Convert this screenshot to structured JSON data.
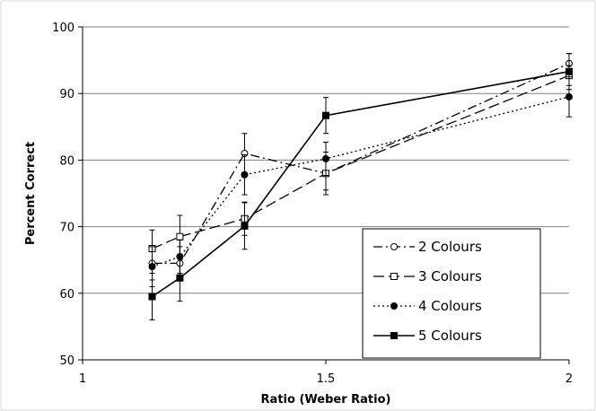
{
  "chart_data": {
    "type": "line",
    "title": "",
    "xlabel": "Ratio (Weber Ratio)",
    "ylabel": "Percent Correct",
    "xlim": [
      1,
      2
    ],
    "ylim": [
      50,
      100
    ],
    "x_ticks": [
      "1",
      "1.5",
      "2"
    ],
    "y_ticks": [
      "50",
      "60",
      "70",
      "80",
      "90",
      "100"
    ],
    "grid": "horizontal",
    "legend_position": "bottom-right",
    "series": [
      {
        "name": "2 Colours",
        "marker": "open-circle",
        "dash": "long-dash-dot",
        "points": [
          {
            "x": 1.143,
            "y": 64.5,
            "err": 2.5
          },
          {
            "x": 1.2,
            "y": 64.5,
            "err": 2.5
          },
          {
            "x": 1.333,
            "y": 81,
            "err": 3
          },
          {
            "x": 1.5,
            "y": 78,
            "err": 2.5
          },
          {
            "x": 2.0,
            "y": 94.5,
            "err": 1.5
          }
        ]
      },
      {
        "name": "3 Colours",
        "marker": "open-square",
        "dash": "long-dash",
        "points": [
          {
            "x": 1.143,
            "y": 66.7,
            "err": 2.8
          },
          {
            "x": 1.2,
            "y": 68.5,
            "err": 3.2
          },
          {
            "x": 1.333,
            "y": 71.2,
            "err": 2.5
          },
          {
            "x": 1.5,
            "y": 78,
            "err": 3.2
          },
          {
            "x": 2.0,
            "y": 92.7,
            "err": 1.5
          }
        ]
      },
      {
        "name": "4 Colours",
        "marker": "filled-circle",
        "dash": "dotted",
        "points": [
          {
            "x": 1.143,
            "y": 64,
            "err": 3
          },
          {
            "x": 1.2,
            "y": 65.5,
            "err": 2.5
          },
          {
            "x": 1.333,
            "y": 77.8,
            "err": 3
          },
          {
            "x": 1.5,
            "y": 80.2,
            "err": 2.5
          },
          {
            "x": 2.0,
            "y": 89.5,
            "err": 3
          }
        ]
      },
      {
        "name": "5 Colours",
        "marker": "filled-square",
        "dash": "solid",
        "points": [
          {
            "x": 1.143,
            "y": 59.5,
            "err": 3.5
          },
          {
            "x": 1.2,
            "y": 62.3,
            "err": 3.5
          },
          {
            "x": 1.333,
            "y": 70.1,
            "err": 3.5
          },
          {
            "x": 1.5,
            "y": 86.7,
            "err": 2.7
          },
          {
            "x": 2.0,
            "y": 93.3,
            "err": 2.7
          }
        ]
      }
    ],
    "colors": {
      "line": "#000000",
      "grid": "#808080",
      "background": "#ffffff",
      "legend_border": "#000000"
    }
  }
}
